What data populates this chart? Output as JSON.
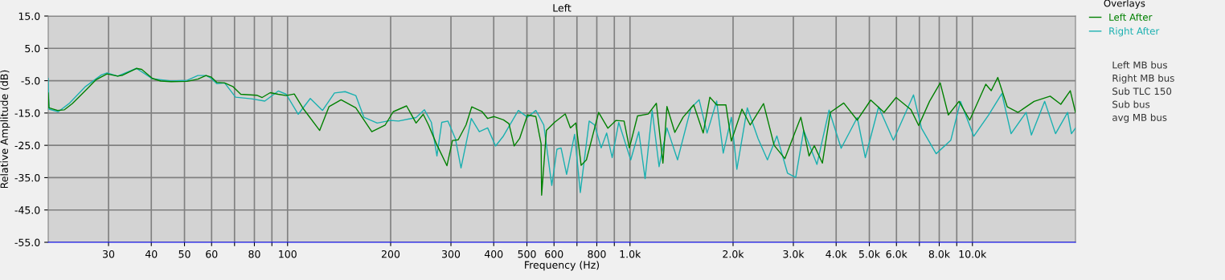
{
  "chart_data": {
    "type": "line",
    "title": "Left",
    "xlabel": "Frequency (Hz)",
    "ylabel": "Relative Amplitude (dB)",
    "legend_title": "Overlays",
    "log": "x",
    "grid": true,
    "legend": "right",
    "xlim": [
      20,
      20000
    ],
    "ylim": [
      -55,
      15
    ],
    "xticks": [
      30,
      40,
      50,
      60,
      {
        "value": 70,
        "label": null
      },
      80,
      {
        "value": 90,
        "label": null
      },
      100,
      200,
      300,
      400,
      500,
      600,
      {
        "value": 700,
        "label": null
      },
      800,
      {
        "value": 900,
        "label": null
      },
      {
        "value": 1000,
        "label": "1.0k"
      },
      {
        "value": 2000,
        "label": "2.0k"
      },
      {
        "value": 3000,
        "label": "3.0k"
      },
      {
        "value": 4000,
        "label": "4.0k"
      },
      {
        "value": 5000,
        "label": "5.0k"
      },
      {
        "value": 6000,
        "label": "6.0k"
      },
      {
        "value": 7000,
        "label": null
      },
      {
        "value": 8000,
        "label": "8.0k"
      },
      {
        "value": 9000,
        "label": null
      },
      {
        "value": 10000,
        "label": "10.0k"
      }
    ],
    "yticks": [
      {
        "value": 15,
        "label": "15.0"
      },
      {
        "value": 5,
        "label": "5.0"
      },
      {
        "value": -5,
        "label": "-5.0"
      },
      {
        "value": -15,
        "label": "-15.0"
      },
      {
        "value": -25,
        "label": "-25.0"
      },
      {
        "value": -35,
        "label": "-35.0"
      },
      {
        "value": -45,
        "label": "-45.0"
      },
      {
        "value": -55,
        "label": "-55.0"
      }
    ],
    "annotations": [
      "Left MB bus",
      "Right MB bus",
      "Sub TLC 150",
      "Sub bus",
      "avg MB bus"
    ],
    "series": [
      {
        "name": "Left After",
        "color": "#008000",
        "x": [
          20,
          20.1,
          21.3,
          22.3,
          23.5,
          25.7,
          27.6,
          29.7,
          31.9,
          33.0,
          36.2,
          37.5,
          40.3,
          42.6,
          45.7,
          50.9,
          54.7,
          57.8,
          59.9,
          62.1,
          65.5,
          69.2,
          73.0,
          81.3,
          84.3,
          89.0,
          93.9,
          99.1,
          104.6,
          111.4,
          124.1,
          132.2,
          143.3,
          158.2,
          176.2,
          192.8,
          203.5,
          222.6,
          237.3,
          249,
          258,
          272,
          292,
          303,
          315,
          332,
          345,
          370,
          384,
          401,
          427,
          443,
          459,
          476,
          502,
          531,
          550,
          552,
          570,
          602,
          647,
          670,
          695,
          720,
          746,
          810,
          862,
          910,
          961,
          996,
          1052,
          1130,
          1194,
          1248,
          1282,
          1352,
          1429,
          1535,
          1636,
          1711,
          1791,
          1906,
          1977,
          2123,
          2244,
          2455,
          2636,
          2833,
          3155,
          3334,
          3454,
          3646,
          3847,
          4210,
          4610,
          5047,
          5521,
          5986,
          6608,
          6970,
          7494,
          8054,
          8505,
          9138,
          9822,
          10940,
          11350,
          11860,
          12640,
          13590,
          15140,
          16870,
          18120,
          19310,
          20000
        ],
        "values": [
          -8.8,
          -13.4,
          -14.2,
          -14.0,
          -12.1,
          -8.0,
          -4.7,
          -2.9,
          -3.6,
          -3.3,
          -1.2,
          -1.5,
          -4.3,
          -5.1,
          -5.3,
          -5.2,
          -4.5,
          -3.4,
          -3.9,
          -5.5,
          -5.7,
          -6.8,
          -9.2,
          -9.5,
          -10.2,
          -8.7,
          -9.2,
          -9.6,
          -9.1,
          -13.8,
          -20.4,
          -13.0,
          -10.9,
          -13.4,
          -20.8,
          -18.7,
          -14.6,
          -12.8,
          -18.1,
          -15.4,
          -18.7,
          -24.5,
          -31.3,
          -23.5,
          -23.3,
          -18.7,
          -13.1,
          -14.6,
          -16.7,
          -16.1,
          -17.1,
          -18.3,
          -25.2,
          -22.9,
          -15.6,
          -16.1,
          -24.5,
          -40.4,
          -20.4,
          -17.9,
          -15.3,
          -19.6,
          -18.1,
          -31.2,
          -29.5,
          -14.8,
          -19.7,
          -17.3,
          -17.5,
          -25.8,
          -15.9,
          -15.3,
          -12.0,
          -30.5,
          -13.0,
          -21.0,
          -16.3,
          -12.5,
          -21.2,
          -10.1,
          -12.5,
          -12.5,
          -23.7,
          -13.8,
          -18.7,
          -12.1,
          -25.0,
          -29.1,
          -16.3,
          -28.3,
          -25.1,
          -30.5,
          -14.8,
          -11.9,
          -17.2,
          -11.0,
          -14.8,
          -10.2,
          -13.9,
          -18.9,
          -11.4,
          -5.7,
          -15.6,
          -11.4,
          -17.2,
          -6.1,
          -8.1,
          -4.0,
          -13.1,
          -14.8,
          -11.4,
          -9.8,
          -12.3,
          -8.1,
          -14.8
        ]
      },
      {
        "name": "Right After",
        "color": "#1ab0b0",
        "x": [
          20,
          20.1,
          21.4,
          23.0,
          25.7,
          28.6,
          29.7,
          31.9,
          36.2,
          40.3,
          45.7,
          50.9,
          54.7,
          57.8,
          59.9,
          62.1,
          65.5,
          70.5,
          78.4,
          85.8,
          93.9,
          99.1,
          107.4,
          116.5,
          126.5,
          137.1,
          147.3,
          158.2,
          167.0,
          182.7,
          200,
          211,
          237.3,
          251,
          263,
          273,
          282,
          294,
          309,
          321,
          344,
          363,
          384,
          405,
          427,
          472,
          502,
          531,
          560,
          591,
          612,
          629,
          653,
          689,
          716,
          760,
          788,
          824,
          855,
          887,
          927,
          1005,
          1061,
          1107,
          1161,
          1216,
          1282,
          1377,
          1507,
          1592,
          1679,
          1791,
          1872,
          1977,
          2052,
          2201,
          2366,
          2520,
          2685,
          2884,
          3048,
          3215,
          3516,
          3814,
          4137,
          4610,
          4866,
          5322,
          5877,
          6730,
          7102,
          7836,
          8650,
          9226,
          10090,
          11150,
          12190,
          12970,
          14350,
          14870,
          16260,
          17490,
          18970,
          19460,
          20000
        ],
        "values": [
          -4.3,
          -13.8,
          -14.6,
          -12.1,
          -6.8,
          -3.2,
          -2.6,
          -3.6,
          -1.2,
          -4.4,
          -5.1,
          -4.9,
          -3.4,
          -3.4,
          -4.3,
          -5.9,
          -5.7,
          -10.1,
          -10.6,
          -11.3,
          -8.2,
          -9.2,
          -15.4,
          -10.5,
          -14.2,
          -8.8,
          -8.4,
          -9.6,
          -16.3,
          -18.1,
          -17.3,
          -17.5,
          -16.4,
          -14.0,
          -17.9,
          -28.3,
          -17.9,
          -17.5,
          -22.9,
          -32.0,
          -16.7,
          -20.8,
          -19.6,
          -25.2,
          -22.1,
          -14.2,
          -16.3,
          -14.2,
          -18.7,
          -37.4,
          -26.2,
          -25.8,
          -34.0,
          -21.6,
          -39.6,
          -17.5,
          -18.7,
          -25.8,
          -21.2,
          -28.8,
          -17.9,
          -29.5,
          -20.8,
          -35.3,
          -14.2,
          -31.6,
          -19.6,
          -29.5,
          -13.4,
          -10.9,
          -21.2,
          -11.3,
          -27.4,
          -16.3,
          -32.4,
          -13.4,
          -22.9,
          -29.5,
          -22.1,
          -33.6,
          -34.9,
          -20.4,
          -30.9,
          -14.1,
          -25.9,
          -16.4,
          -28.8,
          -13.1,
          -23.4,
          -9.4,
          -19.7,
          -27.6,
          -23.4,
          -11.4,
          -22.2,
          -15.6,
          -9.0,
          -21.4,
          -14.8,
          -21.8,
          -11.4,
          -21.4,
          -14.8,
          -21.4,
          -19.7
        ]
      }
    ]
  }
}
